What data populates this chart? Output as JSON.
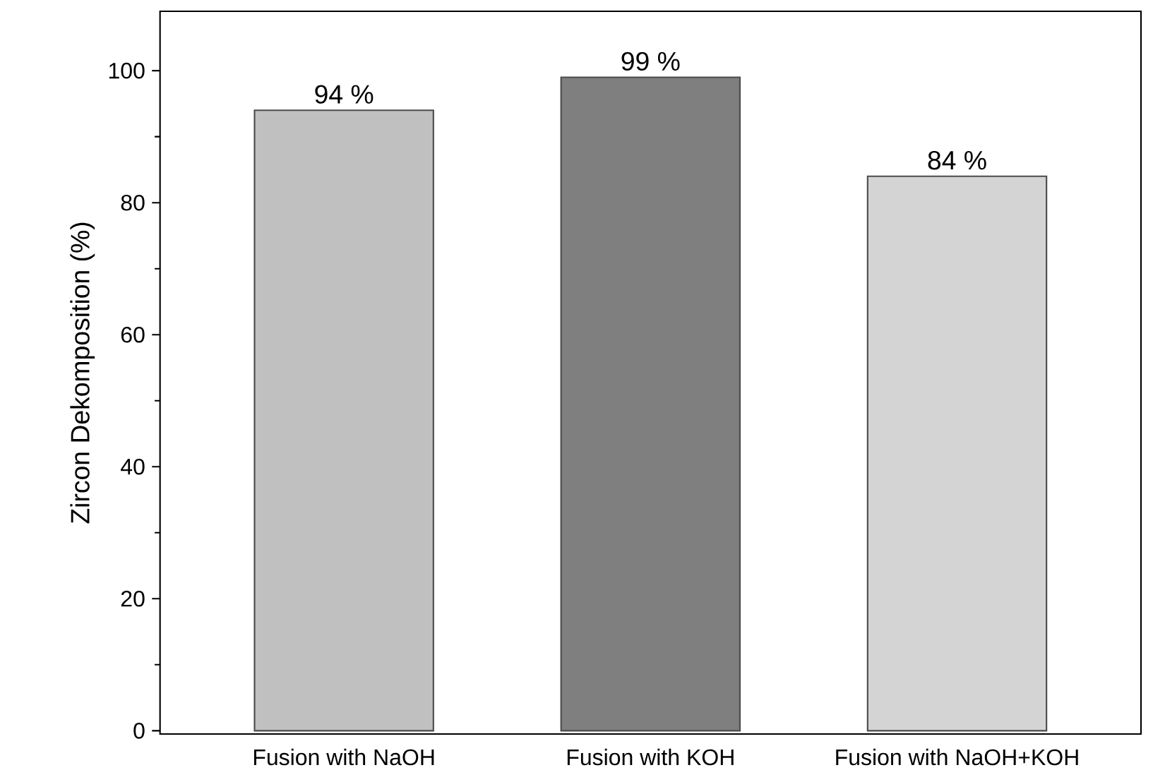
{
  "chart_data": {
    "type": "bar",
    "ylabel": "Zircon Dekomposition (%)",
    "categories": [
      "Fusion with NaOH",
      "Fusion with KOH",
      "Fusion with NaOH+KOH"
    ],
    "values": [
      94,
      99,
      84
    ],
    "colors": [
      "#c0c0c0",
      "#7f7f7f",
      "#d4d4d4"
    ],
    "value_labels": [
      "94 %",
      "99 %",
      "84 %"
    ],
    "ylim": [
      -0.5,
      109
    ],
    "yticks": [
      0,
      20,
      40,
      60,
      80,
      100
    ],
    "grid": false
  }
}
